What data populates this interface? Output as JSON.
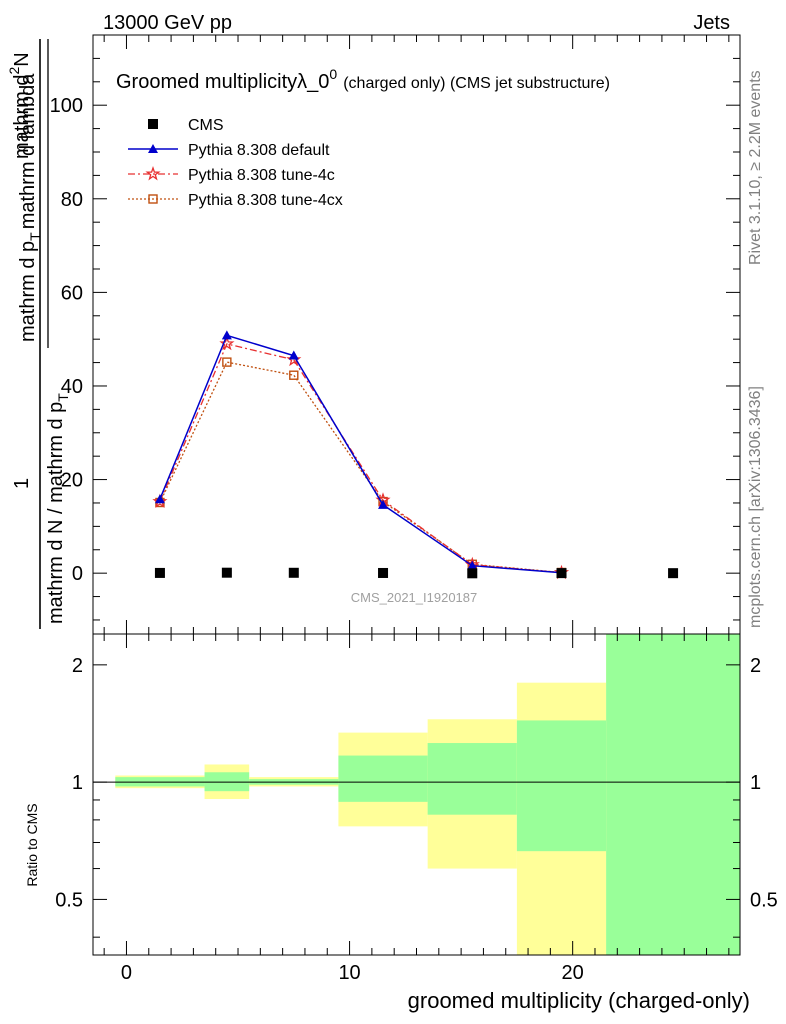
{
  "header": {
    "left": "13000 GeV pp",
    "right": "Jets"
  },
  "side_labels": {
    "rivet": "Rivet 3.1.10, ≥ 2.2M events",
    "mcplots": "mcplots.cern.ch [arXiv:1306.3436]"
  },
  "watermark": "CMS_2021_I1920187",
  "title": {
    "main": "Groomed multiplicity",
    "sym": "λ_0",
    "sup": "0",
    "sub": "(charged only) (CMS jet substructure)"
  },
  "ylabel": {
    "num_1": "1",
    "den_1": "mathrm d N / mathrm d p",
    "den_1_sub": "T",
    "den_2": "mathrm d lambda",
    "num_2_pre": "mathrm d",
    "num_2_sup": "2",
    "num_2_post": "N",
    "den_2_pre": "mathrm d p",
    "den_2_sub": "T",
    "den_2_post": "mathrm d lambda"
  },
  "ratio_ylabel": "Ratio to CMS",
  "xlabel": "groomed multiplicity (charged-only)",
  "colors": {
    "cms": "#000000",
    "default": "#0000cc",
    "tune4c": "#e83030",
    "tune4cx": "#c05010",
    "band_yellow": "#ffff99",
    "band_green": "#99ff99"
  },
  "chart_data": [
    {
      "type": "line",
      "panel": "main",
      "xlim": [
        -1.5,
        27.5
      ],
      "ylim": [
        -13,
        115
      ],
      "xticks": [
        0,
        10,
        20
      ],
      "yticks": [
        0,
        20,
        40,
        60,
        80,
        100
      ],
      "ytick_labels": [
        "0",
        "20",
        "40",
        "60",
        "80",
        "100"
      ],
      "legend_position": "top-left",
      "series": [
        {
          "name": "CMS",
          "marker": "square",
          "x": [
            1.5,
            4.5,
            7.5,
            11.5,
            15.5,
            19.5,
            24.5
          ],
          "y": [
            0.05,
            0.1,
            0.08,
            0.04,
            -0.03,
            0.01,
            0.0
          ]
        },
        {
          "name": "Pythia 8.308 default",
          "marker": "triangle",
          "line": "solid",
          "x": [
            1.5,
            4.5,
            7.5,
            11.5,
            15.5,
            19.5
          ],
          "y": [
            15.8,
            50.8,
            46.5,
            14.6,
            1.6,
            0.1
          ],
          "yerr": [
            0.3,
            0.6,
            0.5,
            0.3,
            0.1,
            0.05
          ]
        },
        {
          "name": "Pythia 8.308 tune-4c",
          "marker": "star",
          "line": "dashdot",
          "x": [
            1.5,
            4.5,
            7.5,
            11.5,
            15.5,
            19.5
          ],
          "y": [
            15.3,
            49.0,
            45.6,
            15.6,
            1.8,
            0.1
          ]
        },
        {
          "name": "Pythia 8.308 tune-4cx",
          "marker": "open-square",
          "line": "dotted",
          "x": [
            1.5,
            4.5,
            7.5,
            11.5,
            15.5,
            19.5
          ],
          "y": [
            15.1,
            45.1,
            42.3,
            15.3,
            1.9,
            0.15
          ]
        }
      ]
    },
    {
      "type": "area",
      "panel": "ratio",
      "ylabel": "Ratio to CMS",
      "xlim": [
        -1.5,
        27.5
      ],
      "ylim": [
        0.36,
        2.4
      ],
      "log_y": true,
      "yticks": [
        0.5,
        1,
        2
      ],
      "ytick_labels": [
        "0.5",
        "1",
        "2"
      ],
      "xticks": [
        0,
        10,
        20
      ],
      "xtick_labels": [
        "0",
        "10",
        "20"
      ],
      "reference_line": 1,
      "bins": [
        {
          "x_low": -0.5,
          "x_high": 3.5,
          "yellow": [
            0.965,
            1.04
          ],
          "green": [
            0.975,
            1.03
          ]
        },
        {
          "x_low": 3.5,
          "x_high": 5.5,
          "yellow": [
            0.905,
            1.11
          ],
          "green": [
            0.948,
            1.06
          ]
        },
        {
          "x_low": 5.5,
          "x_high": 9.5,
          "yellow": [
            0.975,
            1.03
          ],
          "green": [
            0.985,
            1.018
          ]
        },
        {
          "x_low": 9.5,
          "x_high": 13.5,
          "yellow": [
            0.77,
            1.34
          ],
          "green": [
            0.89,
            1.17
          ]
        },
        {
          "x_low": 13.5,
          "x_high": 17.5,
          "yellow": [
            0.6,
            1.45
          ],
          "green": [
            0.825,
            1.26
          ]
        },
        {
          "x_low": 17.5,
          "x_high": 21.5,
          "yellow": [
            0.2,
            1.8
          ],
          "green": [
            0.665,
            1.44
          ]
        },
        {
          "x_low": 21.5,
          "x_high": 27.5,
          "yellow": [
            0.2,
            3.0
          ],
          "green": [
            0.2,
            3.0
          ]
        }
      ]
    }
  ]
}
